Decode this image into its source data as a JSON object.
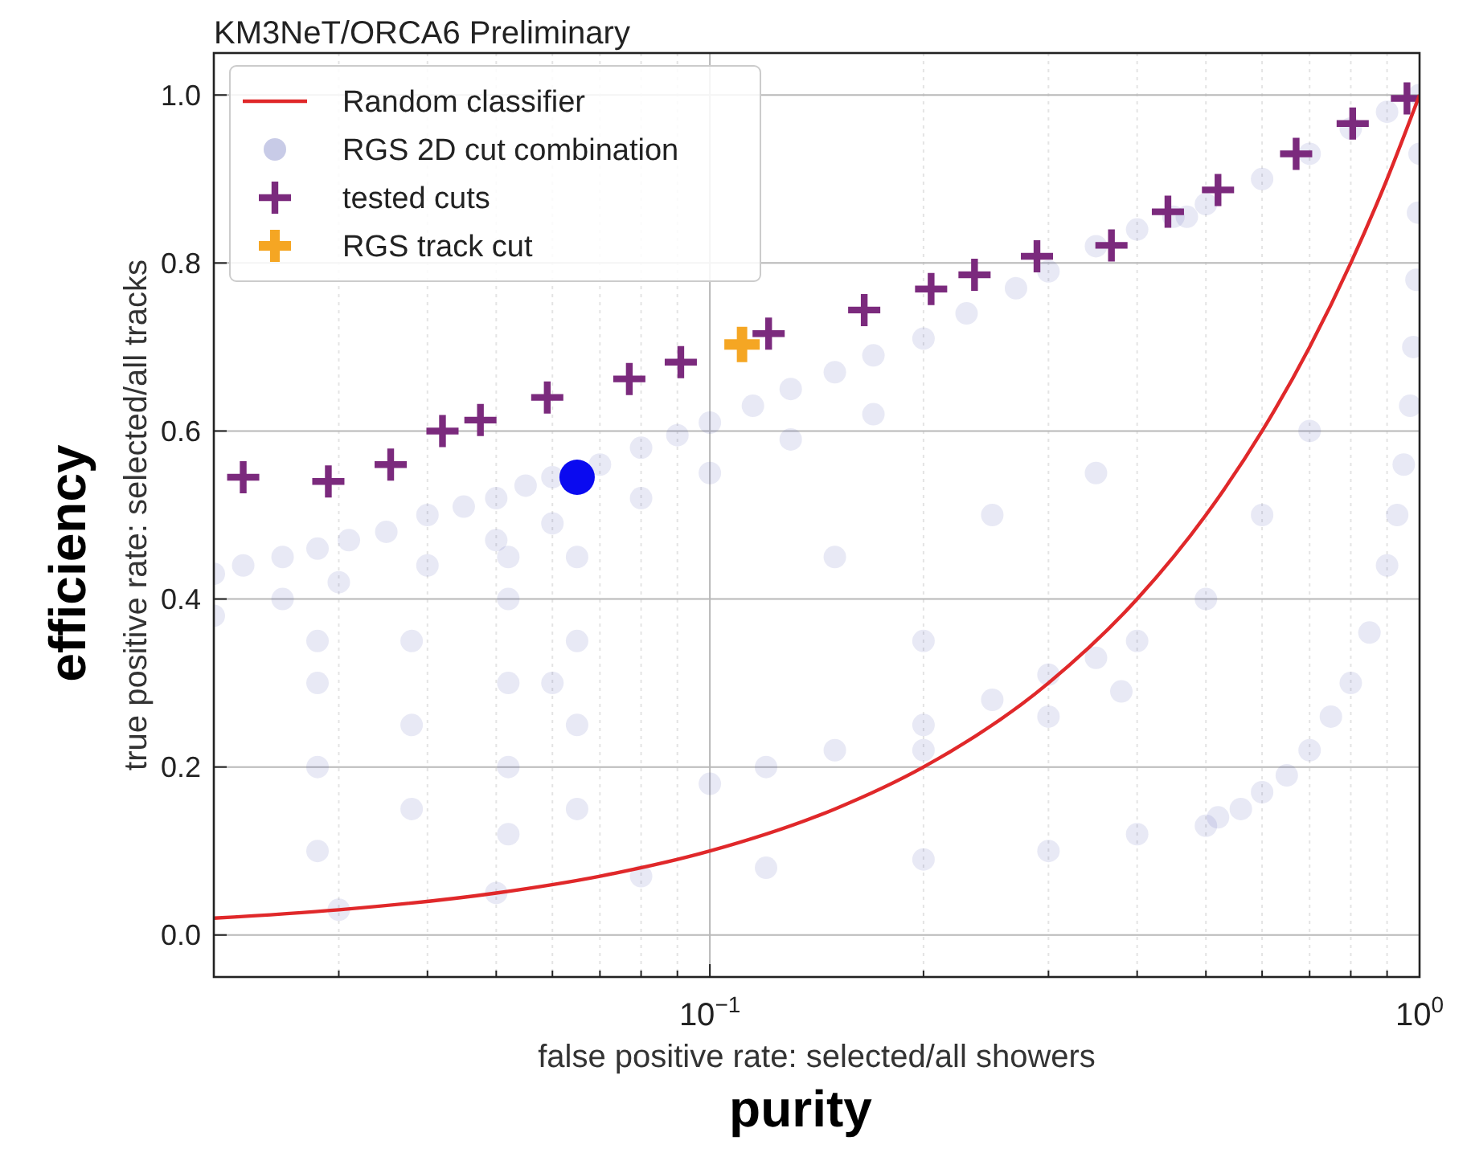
{
  "chart_data": {
    "type": "scatter",
    "title": "KM3NeT/ORCA6 Preliminary",
    "xlabel": "false positive rate: selected/all showers",
    "ylabel": "true positive rate: selected/all tracks",
    "annotations": [
      "efficiency",
      "purity"
    ],
    "log": "x",
    "grid": true,
    "legend": "top left",
    "xlim": [
      0.02,
      1.0
    ],
    "ylim": [
      -0.05,
      1.05
    ],
    "xticks": [
      {
        "value": 0.03,
        "label": null
      },
      {
        "value": 0.04,
        "label": null
      },
      {
        "value": 0.05,
        "label": null
      },
      {
        "value": 0.06,
        "label": null
      },
      {
        "value": 0.07,
        "label": null
      },
      {
        "value": 0.08,
        "label": null
      },
      {
        "value": 0.09,
        "label": null
      },
      {
        "value": 0.1,
        "label": "10$^{−1}$"
      },
      {
        "value": 0.2,
        "label": null
      },
      {
        "value": 0.3,
        "label": null
      },
      {
        "value": 0.4,
        "label": null
      },
      {
        "value": 0.5,
        "label": null
      },
      {
        "value": 0.6,
        "label": null
      },
      {
        "value": 0.7,
        "label": null
      },
      {
        "value": 0.8,
        "label": null
      },
      {
        "value": 0.9,
        "label": null
      },
      {
        "value": 1.0,
        "label": "10$^{0}$"
      }
    ],
    "yticks": [
      {
        "value": 0,
        "label": "0.0"
      },
      0.2,
      0.4,
      0.6,
      0.8,
      {
        "value": 1,
        "label": "1.0"
      }
    ],
    "series": [
      {
        "name": "Random classifier",
        "type": "line",
        "color": "#e0282a",
        "marker": "none",
        "x": [
          0.02,
          0.03,
          0.05,
          0.07,
          0.1,
          0.15,
          0.2,
          0.3,
          0.4,
          0.5,
          0.6,
          0.7,
          0.8,
          0.9,
          1.0
        ],
        "values": [
          0.02,
          0.03,
          0.05,
          0.07,
          0.1,
          0.15,
          0.2,
          0.3,
          0.4,
          0.5,
          0.6,
          0.7,
          0.8,
          0.9,
          1.0
        ]
      },
      {
        "name": "RGS 2D cut combination",
        "color": "#4a52b0",
        "marker": "circle",
        "x": [
          0.02,
          0.022,
          0.025,
          0.028,
          0.031,
          0.035,
          0.04,
          0.045,
          0.05,
          0.055,
          0.06,
          0.07,
          0.08,
          0.09,
          0.1,
          0.115,
          0.13,
          0.15,
          0.17,
          0.2,
          0.23,
          0.27,
          0.3,
          0.35,
          0.4,
          0.45,
          0.47,
          0.02,
          0.025,
          0.03,
          0.04,
          0.05,
          0.06,
          0.08,
          0.1,
          0.13,
          0.17,
          0.5,
          0.6,
          0.7,
          0.8,
          0.9,
          1.0,
          0.52,
          0.56,
          0.6,
          0.65,
          0.7,
          0.75,
          0.8,
          0.85,
          0.9,
          0.93,
          0.95,
          0.97,
          0.98,
          0.99,
          0.995,
          1.0,
          0.12,
          0.15,
          0.2,
          0.25,
          0.3,
          0.35,
          0.4,
          0.1,
          0.2,
          0.3,
          0.38,
          0.028,
          0.028,
          0.028,
          0.028,
          0.038,
          0.038,
          0.038,
          0.052,
          0.052,
          0.052,
          0.052,
          0.052,
          0.065,
          0.065,
          0.065,
          0.065,
          0.03,
          0.05,
          0.08,
          0.12,
          0.2,
          0.3,
          0.4,
          0.5,
          0.15,
          0.25,
          0.35,
          0.2,
          0.5,
          0.6,
          0.7,
          0.06
        ],
        "values": [
          0.43,
          0.44,
          0.45,
          0.46,
          0.47,
          0.48,
          0.5,
          0.51,
          0.52,
          0.535,
          0.545,
          0.56,
          0.58,
          0.595,
          0.61,
          0.63,
          0.65,
          0.67,
          0.69,
          0.71,
          0.74,
          0.77,
          0.79,
          0.82,
          0.84,
          0.855,
          0.855,
          0.38,
          0.4,
          0.42,
          0.44,
          0.47,
          0.49,
          0.52,
          0.55,
          0.59,
          0.62,
          0.87,
          0.9,
          0.93,
          0.96,
          0.98,
          1.0,
          0.14,
          0.15,
          0.17,
          0.19,
          0.22,
          0.26,
          0.3,
          0.36,
          0.44,
          0.5,
          0.56,
          0.63,
          0.7,
          0.78,
          0.86,
          0.93,
          0.2,
          0.22,
          0.25,
          0.28,
          0.31,
          0.33,
          0.35,
          0.18,
          0.22,
          0.26,
          0.29,
          0.1,
          0.2,
          0.3,
          0.35,
          0.15,
          0.25,
          0.35,
          0.12,
          0.2,
          0.3,
          0.4,
          0.45,
          0.15,
          0.25,
          0.35,
          0.45,
          0.03,
          0.05,
          0.07,
          0.08,
          0.09,
          0.1,
          0.12,
          0.13,
          0.45,
          0.5,
          0.55,
          0.35,
          0.4,
          0.5,
          0.6,
          0.3
        ]
      },
      {
        "name": "tested cuts",
        "color": "#7b2a7d",
        "marker": "cross",
        "x": [
          0.022,
          0.029,
          0.0355,
          0.042,
          0.0475,
          0.059,
          0.077,
          0.091,
          0.121,
          0.165,
          0.205,
          0.236,
          0.289,
          0.368,
          0.442,
          0.52,
          0.67,
          0.805,
          0.96
        ],
        "values": [
          0.545,
          0.54,
          0.56,
          0.6,
          0.613,
          0.64,
          0.662,
          0.682,
          0.716,
          0.744,
          0.769,
          0.786,
          0.808,
          0.821,
          0.861,
          0.887,
          0.93,
          0.966,
          0.996
        ]
      },
      {
        "name": "RGS track cut",
        "color": "#f5a623",
        "marker": "cross",
        "x": [
          0.111
        ],
        "values": [
          0.703
        ]
      },
      {
        "color": "#0a0af0",
        "marker": "circle",
        "x": [
          0.065
        ],
        "values": [
          0.545
        ]
      }
    ]
  }
}
